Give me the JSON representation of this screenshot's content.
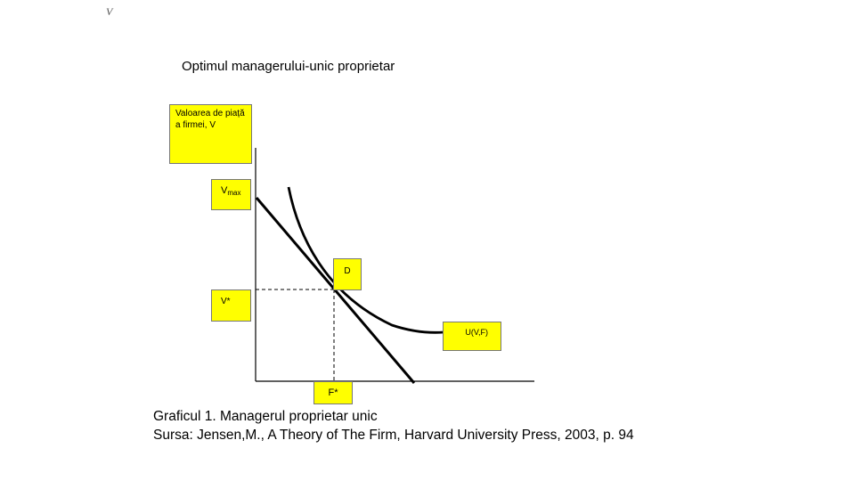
{
  "corner_mark": "V",
  "title": "Optimul managerului-unic proprietar",
  "axis_label": "Valoarea de piață a firmei, V",
  "labels": {
    "vmax_main": "V",
    "vmax_sub": "max",
    "point_d": "D",
    "v_star": "V*",
    "indifference_curve": "U(V,F)",
    "f_star": "F*"
  },
  "caption": {
    "line1": "Graficul 1. Managerul proprietar unic",
    "line2": "Sursa: Jensen,M., A Theory of The Firm, Harvard University Press, 2003, p. 94"
  },
  "colors": {
    "label_box": "#ffff00",
    "lines": "#000000"
  }
}
